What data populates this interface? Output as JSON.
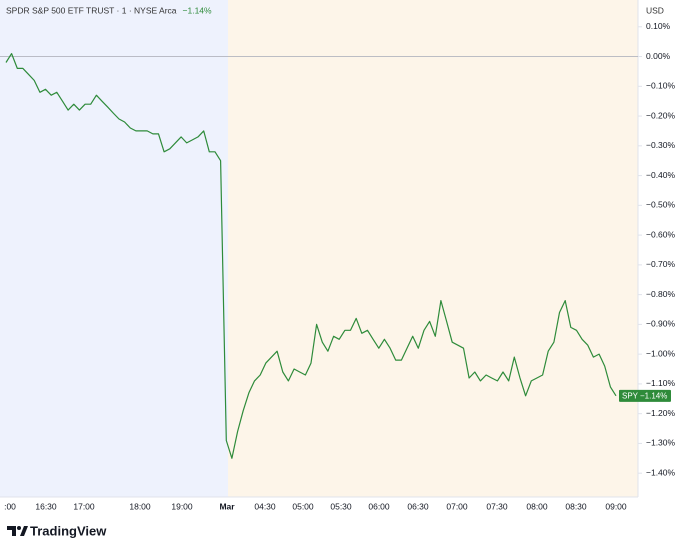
{
  "chart_data": {
    "type": "line",
    "header": {
      "title": "SPDR S&P 500 ETF TRUST · 1 · NYSE Arca",
      "change": "−1.14%"
    },
    "y_unit": "USD",
    "brand": "TradingView",
    "badge": {
      "symbol": "SPY",
      "value": "−1.14%"
    },
    "x_labels": [
      ":00",
      "16:30",
      "17:00",
      "18:00",
      "19:00",
      "Mar",
      "04:30",
      "05:00",
      "05:30",
      "06:00",
      "06:30",
      "07:00",
      "07:30",
      "08:00",
      "08:30",
      "09:00"
    ],
    "series": [
      {
        "name": "SPY",
        "color": "#2e8b3a",
        "values": [
          -0.02,
          0.01,
          -0.04,
          -0.04,
          -0.06,
          -0.08,
          -0.12,
          -0.11,
          -0.13,
          -0.12,
          -0.15,
          -0.18,
          -0.16,
          -0.18,
          -0.16,
          -0.16,
          -0.13,
          -0.15,
          -0.17,
          -0.19,
          -0.21,
          -0.22,
          -0.24,
          -0.25,
          -0.25,
          -0.25,
          -0.26,
          -0.26,
          -0.32,
          -0.31,
          -0.29,
          -0.27,
          -0.29,
          -0.28,
          -0.27,
          -0.25,
          -0.32,
          -0.32,
          -0.35,
          -1.29,
          -1.35,
          -1.26,
          -1.19,
          -1.13,
          -1.09,
          -1.07,
          -1.03,
          -1.01,
          -0.99,
          -1.06,
          -1.09,
          -1.05,
          -1.06,
          -1.07,
          -1.03,
          -0.9,
          -0.96,
          -0.99,
          -0.94,
          -0.95,
          -0.92,
          -0.92,
          -0.88,
          -0.93,
          -0.92,
          -0.95,
          -0.98,
          -0.95,
          -0.98,
          -1.02,
          -1.02,
          -0.98,
          -0.94,
          -0.98,
          -0.92,
          -0.89,
          -0.94,
          -0.82,
          -0.89,
          -0.96,
          -0.97,
          -0.98,
          -1.08,
          -1.06,
          -1.09,
          -1.07,
          -1.08,
          -1.09,
          -1.06,
          -1.09,
          -1.01,
          -1.08,
          -1.14,
          -1.09,
          -1.08,
          -1.07,
          -0.99,
          -0.96,
          -0.86,
          -0.82,
          -0.91,
          -0.92,
          -0.95,
          -0.97,
          -1.01,
          -1.0,
          -1.04,
          -1.11,
          -1.14
        ]
      }
    ],
    "ylim": [
      -1.48,
      0.19
    ],
    "yticks": [
      {
        "value": 0.1,
        "label": "0.10%"
      },
      {
        "value": 0,
        "label": "0.00%"
      },
      {
        "value": -0.1,
        "label": "−0.10%"
      },
      {
        "value": -0.2,
        "label": "−0.20%"
      },
      {
        "value": -0.3,
        "label": "−0.30%"
      },
      {
        "value": -0.4,
        "label": "−0.40%"
      },
      {
        "value": -0.5,
        "label": "−0.50%"
      },
      {
        "value": -0.6,
        "label": "−0.60%"
      },
      {
        "value": -0.7,
        "label": "−0.70%"
      },
      {
        "value": -0.8,
        "label": "−0.80%"
      },
      {
        "value": -0.9,
        "label": "−0.90%"
      },
      {
        "value": -1.0,
        "label": "−1.00%"
      },
      {
        "value": -1.1,
        "label": "−1.10%"
      },
      {
        "value": -1.2,
        "label": "−1.20%"
      },
      {
        "value": -1.3,
        "label": "−1.30%"
      },
      {
        "value": -1.4,
        "label": "−1.40%"
      }
    ]
  }
}
